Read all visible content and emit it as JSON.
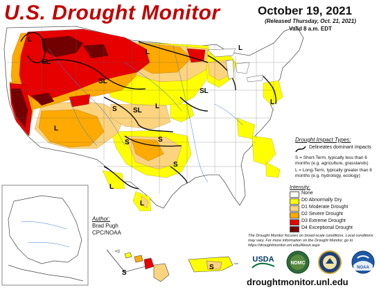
{
  "header": {
    "title": "U.S. Drought Monitor",
    "date": "October 19, 2021",
    "released": "(Released Thursday, Oct. 21, 2021)",
    "valid": "Valid 8 a.m. EDT"
  },
  "impact_types": {
    "title": "Drought Impact Types:",
    "boundary_label": "Delineates dominant impacts",
    "short_term": "S = Short-Term, typically less than 6 months (e.g. agriculture, grasslands)",
    "long_term": "L = Long-Term, typically greater than 6 months (e.g. hydrology, ecology)"
  },
  "intensity": {
    "title": "Intensity:",
    "levels": [
      {
        "label": "None",
        "color": "#ffffff"
      },
      {
        "label": "D0 Abnormally Dry",
        "color": "#ffff00"
      },
      {
        "label": "D1 Moderate Drought",
        "color": "#fcd37f"
      },
      {
        "label": "D2 Severe Drought",
        "color": "#ffaa00"
      },
      {
        "label": "D3 Extreme Drought",
        "color": "#e60000"
      },
      {
        "label": "D4 Exceptional Drought",
        "color": "#730000"
      }
    ]
  },
  "author": {
    "title": "Author:",
    "name": "Brad Pugh",
    "org": "CPC/NOAA"
  },
  "note": "The Drought Monitor focuses on broad-scale conditions. Local conditions may vary. For more information on the Drought Monitor, go to https://droughtmonitor.unl.edu/About.aspx",
  "url": "droughtmonitor.unl.edu",
  "logos": {
    "usda": "USDA",
    "ndmc": "NDMC",
    "noaa": "NOAA"
  },
  "map_labels": {
    "L": "L",
    "S": "S",
    "SL": "SL"
  }
}
